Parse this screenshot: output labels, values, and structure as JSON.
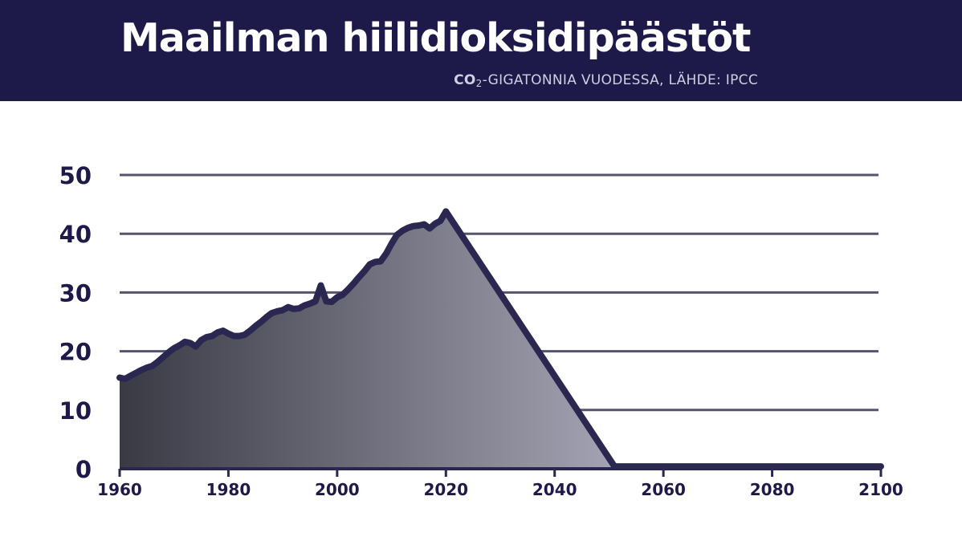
{
  "header": {
    "title": "Maailman hiilidioksidipäästöt",
    "subtitle_co2": "CO",
    "subtitle_sub": "2",
    "subtitle_rest": "-GIGATONNIA VUODESSA, LÄHDE: IPCC"
  },
  "colors": {
    "header_bg": "#1d1a4a",
    "line": "#2a2850",
    "fill_dark": "#3a3a45",
    "fill_light": "#a2a2b2",
    "grid": "#55536e"
  },
  "chart_data": {
    "type": "area",
    "title": "Maailman hiilidioksidipäästöt",
    "subtitle": "CO2-GIGATONNIA VUODESSA, LÄHDE: IPCC",
    "xlabel": "",
    "ylabel": "",
    "xlim": [
      1960,
      2100
    ],
    "ylim": [
      0,
      50
    ],
    "x_ticks": [
      "1960",
      "1980",
      "2000",
      "2020",
      "2040",
      "2060",
      "2080",
      "2100"
    ],
    "y_ticks": [
      "0",
      "10",
      "20",
      "30",
      "40",
      "50"
    ],
    "grid": true,
    "legend": "none",
    "x": [
      1960,
      1961,
      1962,
      1963,
      1964,
      1965,
      1966,
      1967,
      1968,
      1969,
      1970,
      1971,
      1972,
      1973,
      1974,
      1975,
      1976,
      1977,
      1978,
      1979,
      1980,
      1981,
      1982,
      1983,
      1984,
      1985,
      1986,
      1987,
      1988,
      1989,
      1990,
      1991,
      1992,
      1993,
      1994,
      1995,
      1996,
      1997,
      1998,
      1999,
      2000,
      2001,
      2002,
      2003,
      2004,
      2005,
      2006,
      2007,
      2008,
      2009,
      2010,
      2011,
      2012,
      2013,
      2014,
      2015,
      2016,
      2017,
      2018,
      2019,
      2020,
      2051,
      2100
    ],
    "y": [
      15.5,
      15.3,
      15.8,
      16.3,
      16.8,
      17.2,
      17.5,
      18.2,
      19,
      19.8,
      20.5,
      21,
      21.6,
      21.4,
      20.8,
      21.9,
      22.4,
      22.6,
      23.2,
      23.5,
      23,
      22.6,
      22.6,
      22.8,
      23.5,
      24.3,
      25,
      25.8,
      26.5,
      26.8,
      27,
      27.5,
      27.2,
      27.3,
      27.8,
      28.1,
      28.5,
      31.2,
      28.5,
      28.4,
      29.2,
      29.6,
      30.5,
      31.5,
      32.6,
      33.6,
      34.8,
      35.2,
      35.3,
      36.6,
      38.3,
      39.8,
      40.5,
      41,
      41.3,
      41.4,
      41.6,
      40.9,
      41.7,
      42.2,
      43.8,
      0.4,
      0.4
    ]
  }
}
